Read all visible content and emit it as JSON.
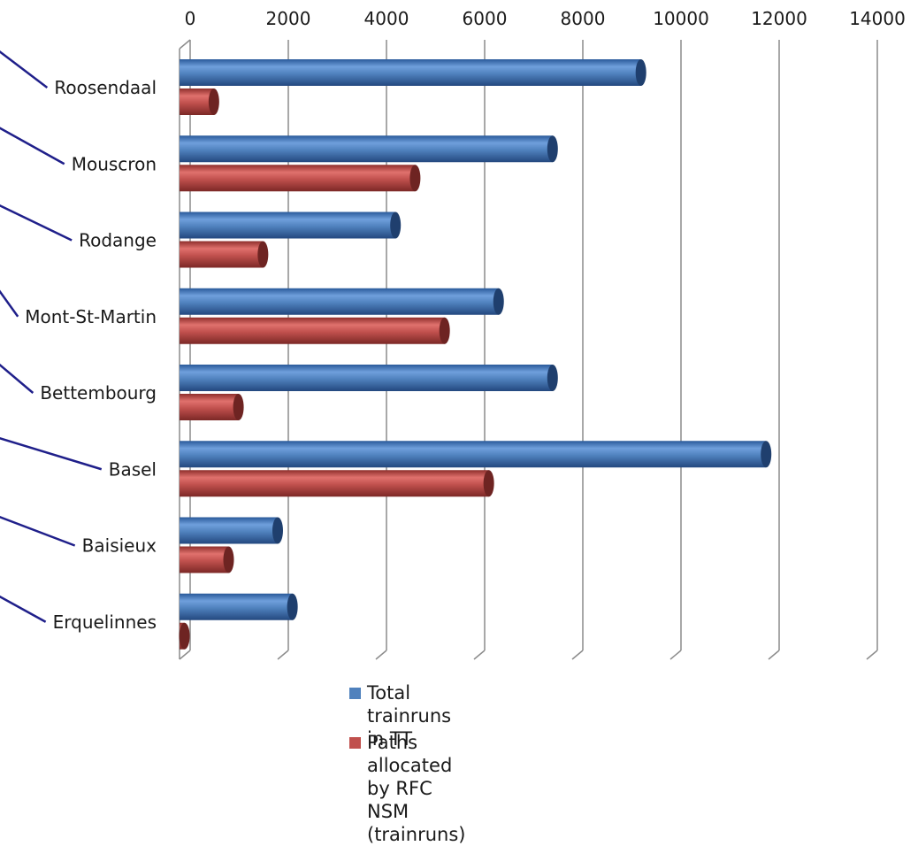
{
  "chart_data": {
    "type": "bar",
    "orientation": "horizontal",
    "categories": [
      "Roosendaal",
      "Mouscron",
      "Rodange",
      "Mont-St-Martin",
      "Bettembourg",
      "Basel",
      "Baisieux",
      "Erquelinnes"
    ],
    "series": [
      {
        "name": "Total trainruns in TT",
        "color": "#4f81bd",
        "values": [
          9400,
          7600,
          4400,
          6500,
          7600,
          11950,
          2000,
          2300
        ]
      },
      {
        "name": "Paths allocated by RFC\nNSM (trainruns)",
        "color": "#c0504d",
        "values": [
          700,
          4800,
          1700,
          5400,
          1200,
          6300,
          1000,
          100
        ]
      }
    ],
    "xlim": [
      0,
      14000
    ],
    "xticks": [
      "0",
      "2000",
      "4000",
      "6000",
      "8000",
      "10000",
      "12000",
      "14000"
    ],
    "xaxis_position": "top",
    "grid": true,
    "style": "3d-cylinder",
    "legend_position": "bottom"
  }
}
